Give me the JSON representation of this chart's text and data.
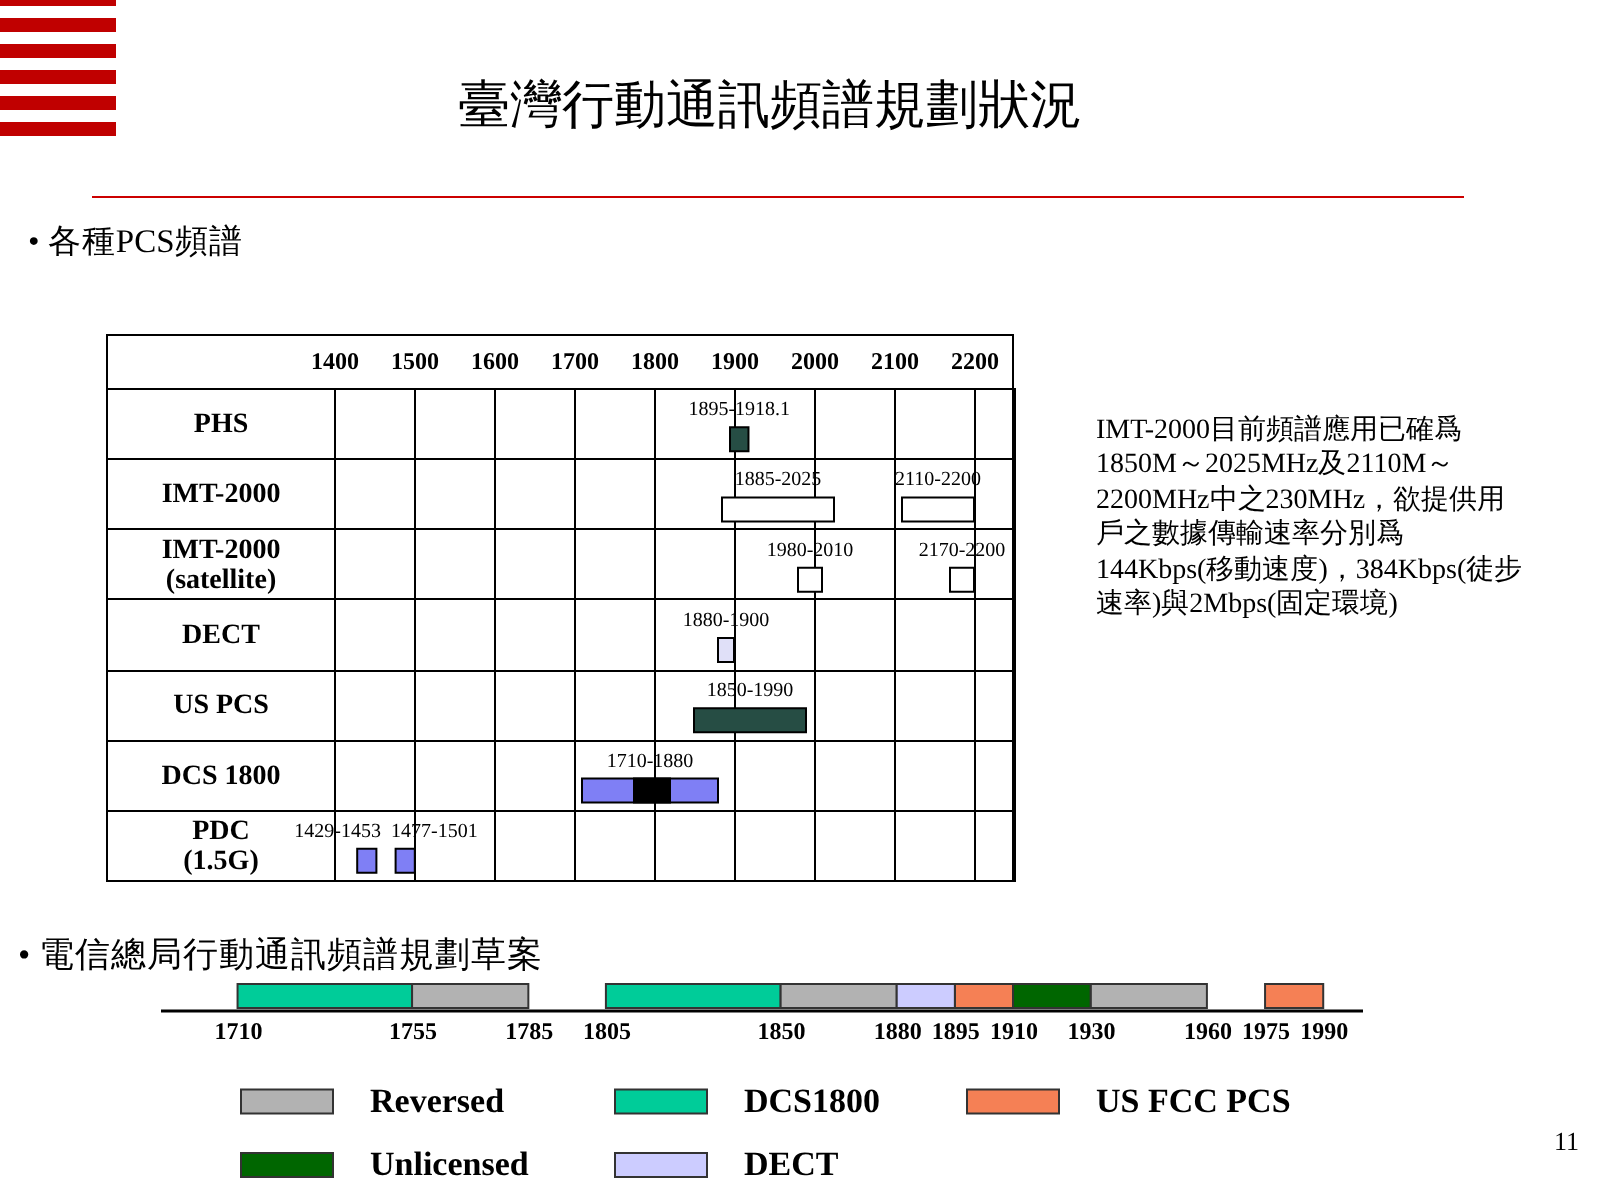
{
  "chart_data": [
    {
      "type": "bar",
      "orientation": "horizontal",
      "title": "臺灣行動通訊頻譜規劃狀況",
      "subtitle": "• 各種PCS頻譜",
      "categories": [
        "PHS",
        "IMT-2000",
        "IMT-2000\n(satellite)",
        "DECT",
        "US PCS",
        "DCS 1800",
        "PDC\n(1.5G)"
      ],
      "series": [
        {
          "values": [
            23.1,
            140,
            30,
            20,
            140,
            170,
            24
          ],
          "base": [
            1895,
            1885,
            1980,
            1880,
            1850,
            1710,
            1429
          ],
          "colors": [
            "#264d44",
            "#ffffff",
            "#ffffff",
            "#e0e0f8",
            "#264d44",
            "#7f7ff5",
            "#7f7ff5"
          ],
          "value_labels": [
            "1895-1918.1",
            "1885-2025",
            "1980-2010",
            "1880-1900",
            "1850-1990",
            "1710-1880",
            "1429-1453"
          ]
        },
        {
          "values": [
            null,
            90,
            30,
            null,
            null,
            45,
            24
          ],
          "base": [
            null,
            2110,
            2170,
            null,
            null,
            1775,
            1477
          ],
          "colors": [
            null,
            "#ffffff",
            "#ffffff",
            null,
            null,
            "#000000",
            "#7f7ff5"
          ],
          "value_labels": [
            null,
            "2110-2200",
            "2170-2200",
            null,
            null,
            null,
            "1477-1501"
          ]
        }
      ],
      "xlim": [
        1400,
        2250
      ],
      "xticks": [
        1400,
        1500,
        1600,
        1700,
        1800,
        1900,
        2000,
        2100,
        2200
      ],
      "grid": true,
      "annotations": [
        "IMT-2000目前頻譜應用已確爲1850M～2025MHz及2110M～2200MHz中之230MHz，欲提供用戶之數據傳輸速率分別爲144Kbps(移動速度)，384Kbps(徒步速率)與2Mbps(固定環境)"
      ]
    },
    {
      "type": "bar",
      "orientation": "horizontal",
      "title": "• 電信總局行動通訊頻譜規劃草案",
      "categories": [
        null
      ],
      "series": [
        {
          "name": "Reversed",
          "color": "#b2b2b2",
          "values": [
            30
          ],
          "base": [
            1755
          ]
        },
        {
          "color": "#b2b2b2",
          "values": [
            30
          ],
          "base": [
            1850
          ]
        },
        {
          "color": "#b2b2b2",
          "values": [
            30
          ],
          "base": [
            1930
          ]
        },
        {
          "name": "DCS1800",
          "color": "#00cc99",
          "values": [
            45
          ],
          "base": [
            1710
          ]
        },
        {
          "color": "#00cc99",
          "values": [
            45
          ],
          "base": [
            1805
          ]
        },
        {
          "name": "US FCC PCS",
          "color": "#f58055",
          "values": [
            15
          ],
          "base": [
            1895
          ]
        },
        {
          "color": "#f58055",
          "values": [
            15
          ],
          "base": [
            1975
          ]
        },
        {
          "name": "Unlicensed",
          "color": "#006600",
          "values": [
            20
          ],
          "base": [
            1910
          ]
        },
        {
          "name": "DECT",
          "color": "#ccccff",
          "values": [
            15
          ],
          "base": [
            1880
          ]
        }
      ],
      "xlim": [
        1690,
        2000
      ],
      "xticks": [
        1710,
        1755,
        1785,
        1805,
        1850,
        1880,
        1895,
        1910,
        1930,
        1960,
        1975,
        1990
      ],
      "legend": "bottom",
      "annotations": [
        "11"
      ]
    }
  ]
}
